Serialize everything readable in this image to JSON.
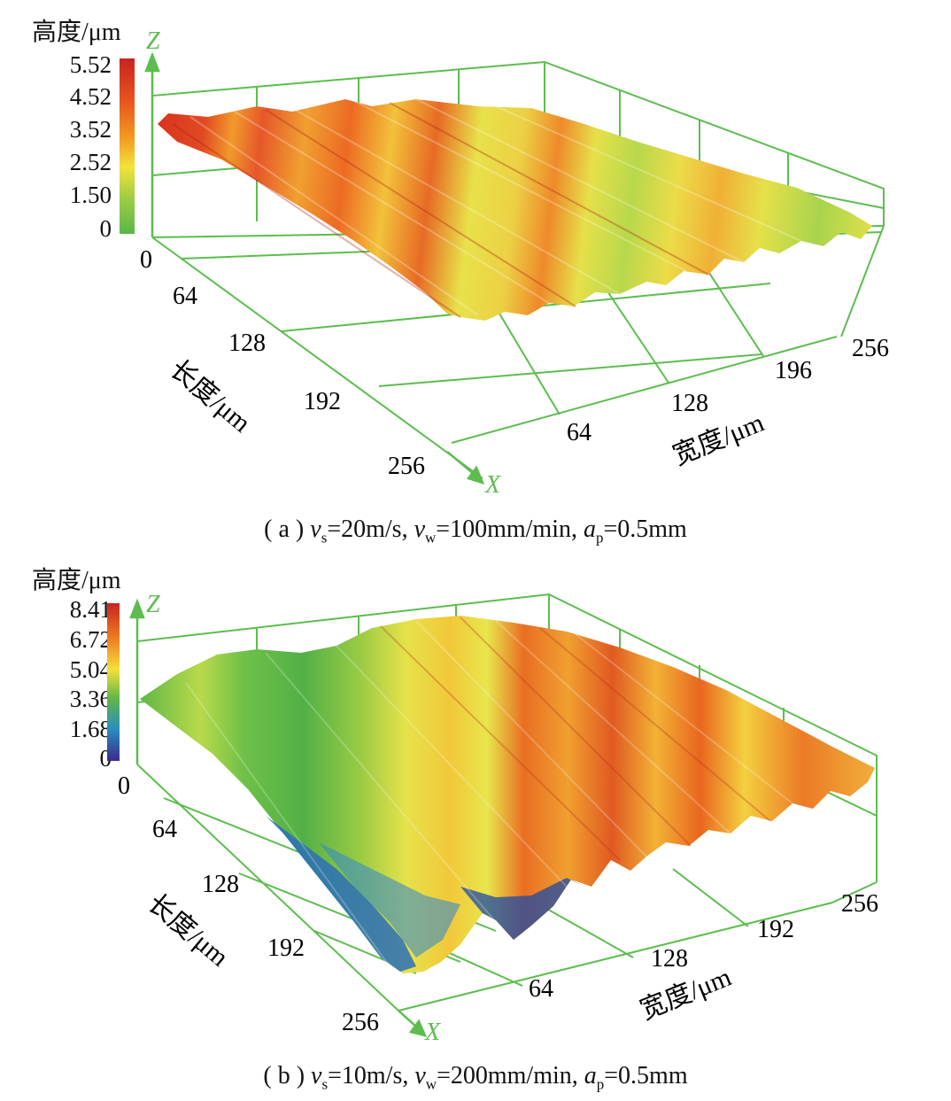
{
  "chart_data": [
    {
      "type": "surface3d",
      "caption": {
        "prefix": "( a )",
        "vs_value": "=20m/s",
        "vw_value": "=100mm/min",
        "ap_value": "=0.5mm"
      },
      "colorbar": {
        "title": "高度/μm",
        "ticks": [
          "5.52",
          "4.52",
          "3.52",
          "2.52",
          "1.50",
          "0"
        ],
        "range": [
          0,
          5.52
        ],
        "colors": [
          "#c8231f",
          "#e8561e",
          "#f29a20",
          "#f2e33a",
          "#9ccc44",
          "#58b847"
        ]
      },
      "axes": {
        "x": {
          "name": "X",
          "label": "长度/μm",
          "ticks": [
            "0",
            "64",
            "128",
            "192",
            "256"
          ]
        },
        "y": {
          "label": "宽度/μm",
          "ticks": [
            "64",
            "128",
            "196",
            "256"
          ]
        },
        "z": {
          "name": "Z"
        },
        "axis_color": "#5cbd4e"
      },
      "surface": {
        "description_colors": [
          "#d9351f",
          "#ec6a24",
          "#f0a030",
          "#e6e04a",
          "#a8d44c"
        ]
      }
    },
    {
      "type": "surface3d",
      "caption": {
        "prefix": "( b )",
        "vs_value": "=10m/s",
        "vw_value": "=200mm/min",
        "ap_value": "=0.5mm"
      },
      "colorbar": {
        "title": "高度/μm",
        "ticks": [
          "8.41",
          "6.72",
          "5.04",
          "3.36",
          "1.68",
          "0"
        ],
        "range": [
          0,
          8.41
        ],
        "colors": [
          "#c8231f",
          "#ef7b22",
          "#f3e13b",
          "#62b846",
          "#2a8cc0",
          "#3b2a8c"
        ]
      },
      "axes": {
        "x": {
          "name": "X",
          "label": "长度/μm",
          "ticks": [
            "0",
            "64",
            "128",
            "192",
            "256"
          ]
        },
        "y": {
          "label": "宽度/μm",
          "ticks": [
            "64",
            "128",
            "192",
            "256"
          ]
        },
        "z": {
          "name": "Z"
        },
        "axis_color": "#5cbd4e"
      }
    }
  ]
}
